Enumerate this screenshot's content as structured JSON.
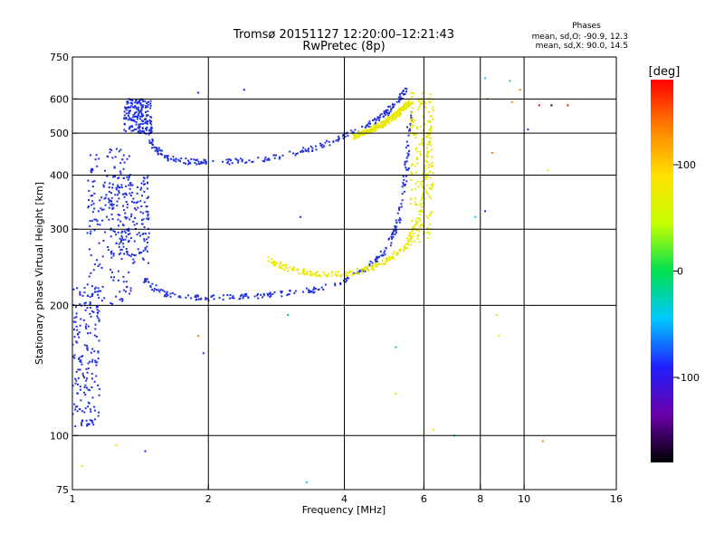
{
  "header": {
    "title": "Tromsø 20151127 12:20:00–12:21:43",
    "subtitle": "RwPretec (8p)"
  },
  "phase_box": {
    "heading": "Phases",
    "line1": "mean, sd,O: -90.9, 12.3",
    "line2": "mean, sd,X:  90.0, 14.5"
  },
  "colorbar": {
    "unit": "[deg]",
    "ticks": [
      "100",
      "0",
      "-100"
    ],
    "range": [
      -180,
      180
    ],
    "colors": [
      "#000000",
      "#6a00a8",
      "#2020ff",
      "#00c8ff",
      "#00e050",
      "#c8ff00",
      "#ffe000",
      "#ff8000",
      "#ff0000"
    ]
  },
  "chart_data": {
    "type": "scatter",
    "xlabel": "Frequency [MHz]",
    "ylabel": "Stationary phase Virtual Height [km]",
    "x_scale": "log2",
    "y_scale": "log",
    "xlim": [
      1,
      16
    ],
    "ylim": [
      75,
      750
    ],
    "x_ticks": [
      1,
      2,
      4,
      6,
      8,
      10,
      16
    ],
    "y_ticks": [
      75,
      100,
      200,
      300,
      400,
      500,
      600,
      750
    ],
    "x_gridlines": [
      2,
      4,
      6,
      8,
      10
    ],
    "y_gridlines": [
      100,
      200,
      300,
      400,
      500,
      600
    ],
    "o_color": "#2030e0",
    "x_color": "#e8e800",
    "series": [
      {
        "name": "O",
        "curves": [
          {
            "x": [
              1.45,
              1.55,
              1.7,
              2.0,
              2.5,
              3.0,
              3.5,
              4.0,
              4.5,
              5.0,
              5.3,
              5.5,
              5.6
            ],
            "y": [
              230,
              215,
              210,
              208,
              210,
              213,
              218,
              228,
              245,
              270,
              320,
              420,
              560
            ]
          },
          {
            "x": [
              1.4,
              1.5,
              1.6,
              1.8,
              2.0,
              2.5,
              3.0,
              3.5,
              4.0,
              4.5,
              5.0,
              5.3,
              5.5
            ],
            "y": [
              590,
              470,
              440,
              430,
              428,
              432,
              445,
              465,
              490,
              520,
              560,
              600,
              640
            ]
          }
        ],
        "clusters": [
          {
            "x": [
              1.0,
              1.15
            ],
            "y": [
              105,
              220
            ]
          },
          {
            "x": [
              1.08,
              1.35
            ],
            "y": [
              200,
              460
            ]
          },
          {
            "x": [
              1.2,
              1.48
            ],
            "y": [
              250,
              400
            ]
          },
          {
            "x": [
              1.3,
              1.5
            ],
            "y": [
              500,
              600
            ]
          }
        ]
      },
      {
        "name": "X",
        "curves": [
          {
            "x": [
              2.7,
              3.0,
              3.5,
              4.0,
              4.5,
              5.0,
              5.5,
              5.9,
              6.1,
              6.2
            ],
            "y": [
              255,
              243,
              236,
              236,
              242,
              255,
              275,
              320,
              420,
              560
            ]
          },
          {
            "x": [
              4.2,
              4.8,
              5.2,
              5.6
            ],
            "y": [
              490,
              520,
              550,
              590
            ]
          }
        ],
        "clusters": [
          {
            "x": [
              5.6,
              6.3
            ],
            "y": [
              280,
              620
            ]
          }
        ]
      }
    ],
    "stray_points": [
      {
        "x": 1.9,
        "y": 620,
        "phase": -90
      },
      {
        "x": 2.4,
        "y": 630,
        "phase": -95
      },
      {
        "x": 3.2,
        "y": 320,
        "phase": -90
      },
      {
        "x": 3.0,
        "y": 190,
        "phase": 0
      },
      {
        "x": 5.2,
        "y": 160,
        "phase": -20
      },
      {
        "x": 5.2,
        "y": 125,
        "phase": 90
      },
      {
        "x": 3.3,
        "y": 78,
        "phase": -30
      },
      {
        "x": 6.3,
        "y": 103,
        "phase": 80
      },
      {
        "x": 7.0,
        "y": 100,
        "phase": -60
      },
      {
        "x": 7.8,
        "y": 320,
        "phase": -30
      },
      {
        "x": 8.2,
        "y": 330,
        "phase": -100
      },
      {
        "x": 8.2,
        "y": 670,
        "phase": -30
      },
      {
        "x": 8.3,
        "y": 600,
        "phase": 120
      },
      {
        "x": 8.5,
        "y": 450,
        "phase": 140
      },
      {
        "x": 8.7,
        "y": 190,
        "phase": 100
      },
      {
        "x": 8.8,
        "y": 170,
        "phase": 60
      },
      {
        "x": 9.3,
        "y": 660,
        "phase": -20
      },
      {
        "x": 9.4,
        "y": 590,
        "phase": 140
      },
      {
        "x": 9.8,
        "y": 630,
        "phase": 120
      },
      {
        "x": 10.2,
        "y": 510,
        "phase": -80
      },
      {
        "x": 10.8,
        "y": 580,
        "phase": 170
      },
      {
        "x": 11.3,
        "y": 410,
        "phase": 110
      },
      {
        "x": 11.5,
        "y": 580,
        "phase": -160
      },
      {
        "x": 12.5,
        "y": 580,
        "phase": 175
      },
      {
        "x": 11.0,
        "y": 97,
        "phase": 120
      },
      {
        "x": 1.25,
        "y": 95,
        "phase": 110
      },
      {
        "x": 1.45,
        "y": 92,
        "phase": -100
      },
      {
        "x": 1.05,
        "y": 85,
        "phase": 110
      },
      {
        "x": 1.9,
        "y": 170,
        "phase": 150
      },
      {
        "x": 1.95,
        "y": 155,
        "phase": -100
      }
    ]
  }
}
